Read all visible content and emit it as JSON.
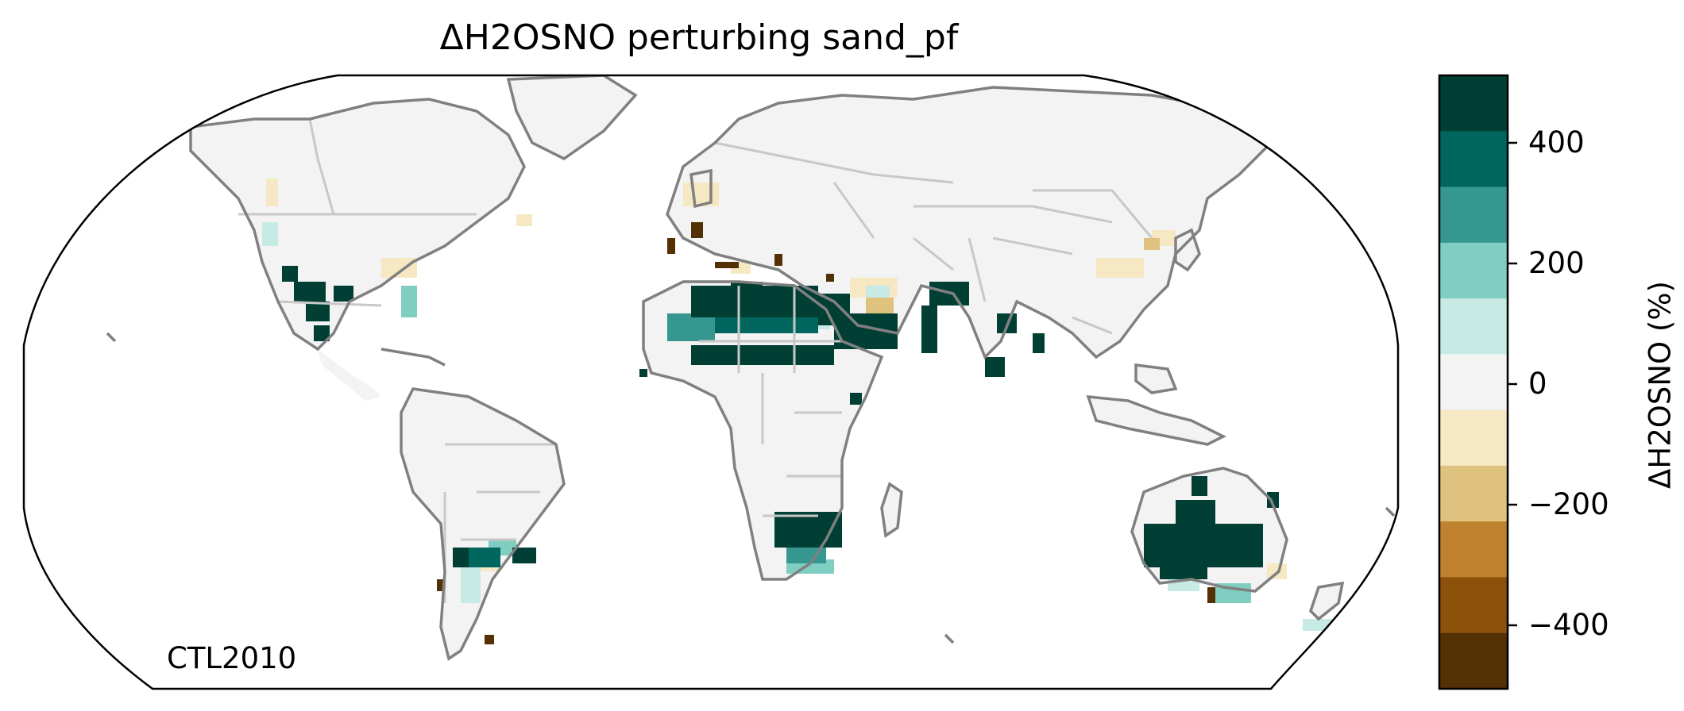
{
  "title": "ΔH2OSNO perturbing sand_pf",
  "run_label": "CTL2010",
  "colorbar": {
    "label": "ΔH2OSNO (%)",
    "ticks": [
      {
        "value": 400,
        "label": "400"
      },
      {
        "value": 200,
        "label": "200"
      },
      {
        "value": 0,
        "label": "0"
      },
      {
        "value": -200,
        "label": "−200"
      },
      {
        "value": -400,
        "label": "−400"
      }
    ],
    "range": [
      -500,
      500
    ],
    "bins": [
      {
        "from": 400,
        "to": 500,
        "color": "#013f35"
      },
      {
        "from": 300,
        "to": 400,
        "color": "#01665e"
      },
      {
        "from": 200,
        "to": 300,
        "color": "#35978f"
      },
      {
        "from": 100,
        "to": 200,
        "color": "#80cdc1"
      },
      {
        "from": 50,
        "to": 100,
        "color": "#c7eae5"
      },
      {
        "from": -50,
        "to": 50,
        "color": "#f3f3f3"
      },
      {
        "from": -100,
        "to": -50,
        "color": "#f6e8c3"
      },
      {
        "from": -200,
        "to": -100,
        "color": "#dfc27d"
      },
      {
        "from": -300,
        "to": -200,
        "color": "#bf812d"
      },
      {
        "from": -400,
        "to": -300,
        "color": "#8c510a"
      },
      {
        "from": -500,
        "to": -400,
        "color": "#543005"
      }
    ]
  },
  "colors": {
    "coastline": "#808080",
    "borders": "#c8c8c8",
    "land_neutral": "#f3f3f3",
    "frame": "#000000"
  }
}
